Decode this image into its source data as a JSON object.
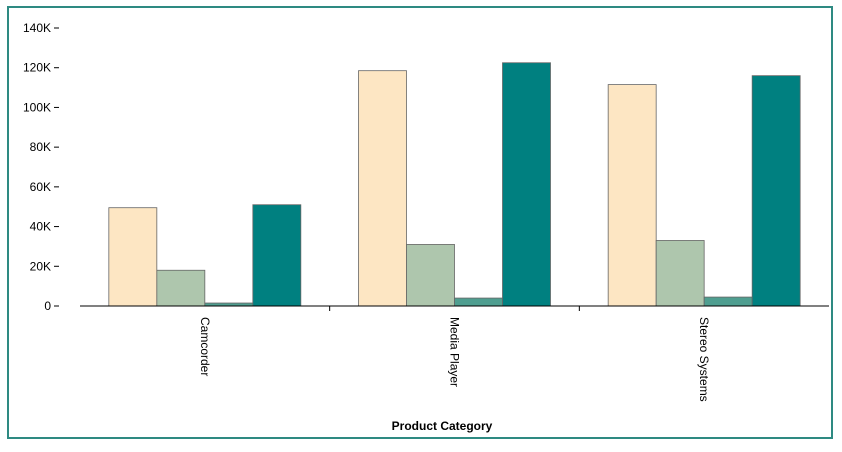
{
  "chart_data": {
    "type": "bar",
    "title": "",
    "xlabel": "Product Category",
    "ylabel": "",
    "categories": [
      "Camcorder",
      "Media Player",
      "Stereo Systems"
    ],
    "series": [
      {
        "color": "#fde6c3",
        "values": [
          49500,
          118500,
          111500
        ]
      },
      {
        "color": "#aec6ad",
        "values": [
          18000,
          31000,
          33000
        ]
      },
      {
        "color": "#4f9e90",
        "values": [
          1500,
          4000,
          4500
        ]
      },
      {
        "color": "#008080",
        "values": [
          51000,
          122500,
          116000
        ]
      }
    ],
    "y_ticks": [
      0,
      20000,
      40000,
      60000,
      80000,
      100000,
      120000,
      140000
    ],
    "y_tick_labels": [
      "0",
      "20K",
      "40K",
      "60K",
      "80K",
      "100K",
      "120K",
      "140K"
    ],
    "ylim": [
      0,
      140000
    ],
    "grid": false,
    "legend": "none"
  }
}
